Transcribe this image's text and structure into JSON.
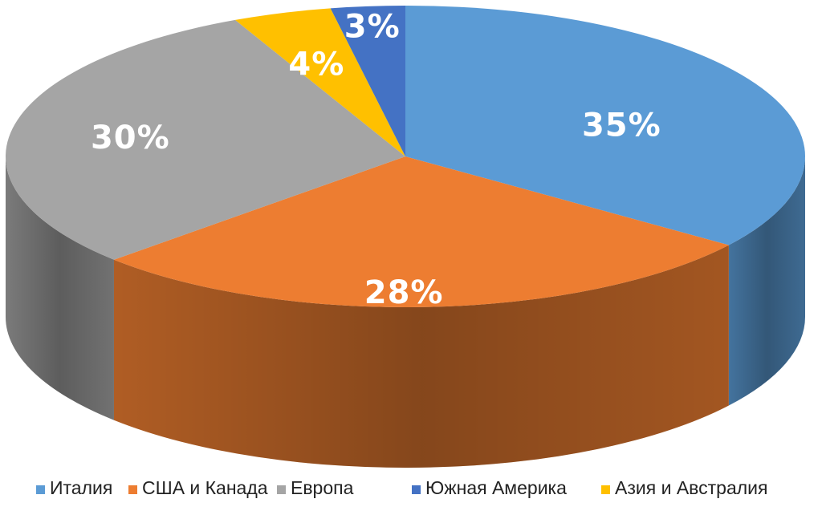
{
  "chart_data": {
    "type": "pie",
    "style": "3d",
    "categories": [
      "Италия",
      "США и Канада",
      "Европа",
      "Южная Америка",
      "Азия и Австралия"
    ],
    "values": [
      35,
      28,
      30,
      3,
      4
    ],
    "value_labels": [
      "35%",
      "28%",
      "30%",
      "3%",
      "4%"
    ],
    "unit": "%",
    "colors": [
      "#5B9BD5",
      "#ED7D31",
      "#A5A5A5",
      "#4472C4",
      "#FFC000"
    ],
    "legend_position": "bottom"
  }
}
